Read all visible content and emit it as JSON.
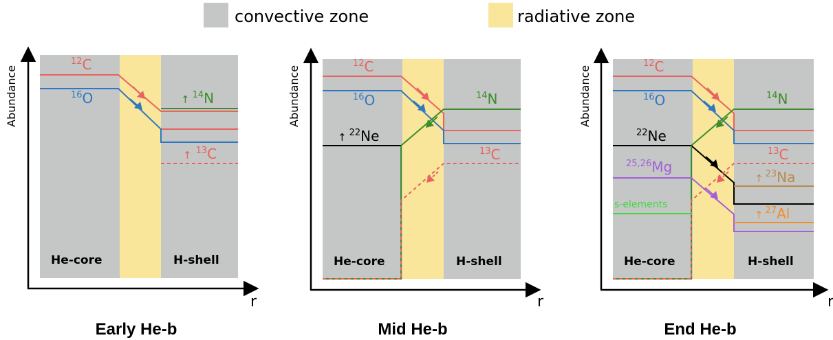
{
  "legend": {
    "convective_label": "convective zone",
    "radiative_label": "radiative zone"
  },
  "colors": {
    "convective": "#c5c7c6",
    "radiative": "#f9e69b",
    "c12": "#e8625f",
    "o16": "#2f77c0",
    "n14": "#3c8c2c",
    "c13": "#e8625f",
    "ne22": "#000000",
    "mg": "#a35fd8",
    "na23": "#b98a4e",
    "al27": "#ef8d2a",
    "s_elements": "#3fd83f"
  },
  "axes": {
    "x_label": "r",
    "y_label": "Abundance"
  },
  "panels": [
    {
      "title": "Early He-b",
      "zones": {
        "left": "He-core",
        "right": "H-shell"
      },
      "labels": {
        "c12": {
          "mass": "12",
          "elem": "C"
        },
        "o16": {
          "mass": "16",
          "elem": "O"
        },
        "n14": {
          "arrow": "↑",
          "mass": "14",
          "elem": "N"
        },
        "c13": {
          "arrow": "↑",
          "mass": "13",
          "elem": "C"
        }
      }
    },
    {
      "title": "Mid He-b",
      "zones": {
        "left": "He-core",
        "right": "H-shell"
      },
      "labels": {
        "c12": {
          "mass": "12",
          "elem": "C"
        },
        "o16": {
          "mass": "16",
          "elem": "O"
        },
        "n14": {
          "mass": "14",
          "elem": "N"
        },
        "ne22": {
          "arrow": "↑",
          "mass": "22",
          "elem": "Ne"
        },
        "c13": {
          "mass": "13",
          "elem": "C"
        }
      }
    },
    {
      "title": "End He-b",
      "zones": {
        "left": "He-core",
        "right": "H-shell"
      },
      "labels": {
        "c12": {
          "mass": "12",
          "elem": "C"
        },
        "o16": {
          "mass": "16",
          "elem": "O"
        },
        "n14": {
          "mass": "14",
          "elem": "N"
        },
        "ne22": {
          "mass": "22",
          "elem": "Ne"
        },
        "c13": {
          "mass": "13",
          "elem": "C"
        },
        "mg": {
          "mass": "25,26",
          "elem": "Mg"
        },
        "na23": {
          "arrow": "↑",
          "mass": "23",
          "elem": "Na"
        },
        "al27": {
          "arrow": "↑",
          "mass": "27",
          "elem": "Al"
        },
        "s_elements": {
          "text": "s-elements"
        }
      }
    }
  ]
}
